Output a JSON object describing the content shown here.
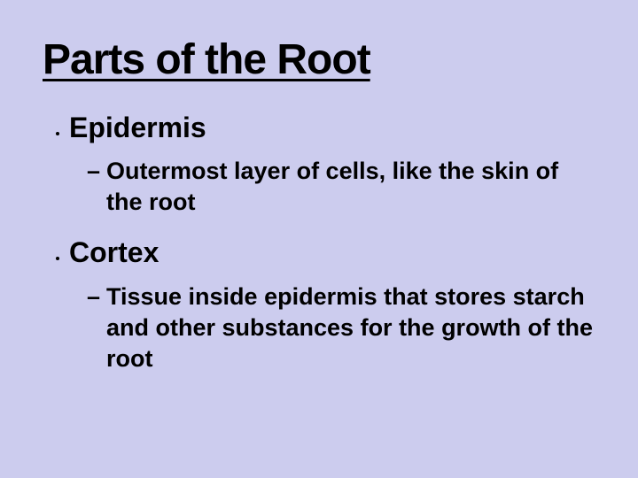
{
  "background_color": "#ccccee",
  "text_color": "#000000",
  "title": {
    "text": "Parts of the Root",
    "font_size_pt": 48,
    "font_weight": 900,
    "underline": true
  },
  "bullets": [
    {
      "heading": "Epidermis",
      "heading_font_size_pt": 32,
      "heading_font_weight": 700,
      "subs": [
        {
          "text": "Outermost layer of cells, like the skin of the root",
          "font_size_pt": 27,
          "font_weight": 700
        }
      ]
    },
    {
      "heading": "Cortex",
      "heading_font_size_pt": 32,
      "heading_font_weight": 700,
      "subs": [
        {
          "text": "Tissue inside epidermis that stores starch and other substances for the growth of the root",
          "font_size_pt": 27,
          "font_weight": 700
        }
      ]
    }
  ]
}
